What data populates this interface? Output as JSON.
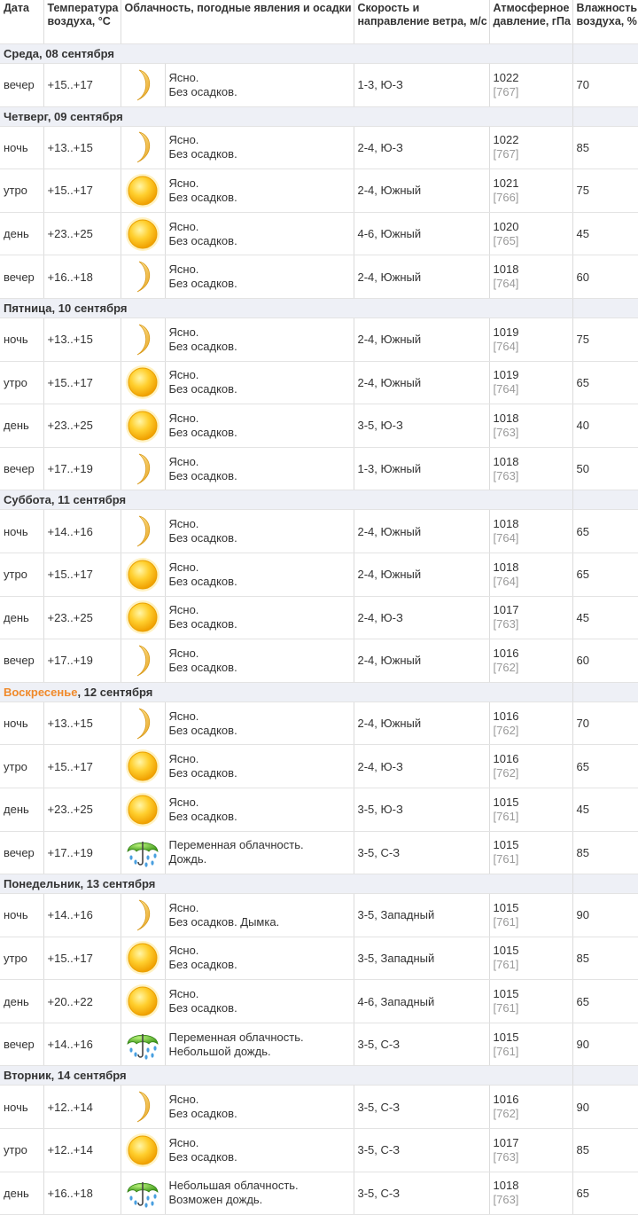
{
  "header": {
    "date": "Дата",
    "temp": "Температура воздуха, °C",
    "sky": "Облачность, погодные явления и осадки",
    "wind": "Скорость и направление ветра, м/с",
    "pressure": "Атмосферное давление, гПа",
    "humidity": "Влажность воздуха, %"
  },
  "days": [
    {
      "weekday": "Среда",
      "date": ", 08 сентября",
      "rows": [
        {
          "time": "вечер",
          "temp": "+15..+17",
          "icon": "moon",
          "sky": "Ясно.",
          "precip": "Без осадков.",
          "wind": "1-3, Ю-З",
          "hpa": 1022,
          "mmhg": "[767]",
          "humidity": 70
        }
      ]
    },
    {
      "weekday": "Четверг",
      "date": ", 09 сентября",
      "rows": [
        {
          "time": "ночь",
          "temp": "+13..+15",
          "icon": "moon",
          "sky": "Ясно.",
          "precip": "Без осадков.",
          "wind": "2-4, Ю-З",
          "hpa": 1022,
          "mmhg": "[767]",
          "humidity": 85
        },
        {
          "time": "утро",
          "temp": "+15..+17",
          "icon": "sun",
          "sky": "Ясно.",
          "precip": "Без осадков.",
          "wind": "2-4, Южный",
          "hpa": 1021,
          "mmhg": "[766]",
          "humidity": 75
        },
        {
          "time": "день",
          "temp": "+23..+25",
          "icon": "sun",
          "sky": "Ясно.",
          "precip": "Без осадков.",
          "wind": "4-6, Южный",
          "hpa": 1020,
          "mmhg": "[765]",
          "humidity": 45
        },
        {
          "time": "вечер",
          "temp": "+16..+18",
          "icon": "moon",
          "sky": "Ясно.",
          "precip": "Без осадков.",
          "wind": "2-4, Южный",
          "hpa": 1018,
          "mmhg": "[764]",
          "humidity": 60
        }
      ]
    },
    {
      "weekday": "Пятница",
      "date": ", 10 сентября",
      "rows": [
        {
          "time": "ночь",
          "temp": "+13..+15",
          "icon": "moon",
          "sky": "Ясно.",
          "precip": "Без осадков.",
          "wind": "2-4, Южный",
          "hpa": 1019,
          "mmhg": "[764]",
          "humidity": 75
        },
        {
          "time": "утро",
          "temp": "+15..+17",
          "icon": "sun",
          "sky": "Ясно.",
          "precip": "Без осадков.",
          "wind": "2-4, Южный",
          "hpa": 1019,
          "mmhg": "[764]",
          "humidity": 65
        },
        {
          "time": "день",
          "temp": "+23..+25",
          "icon": "sun",
          "sky": "Ясно.",
          "precip": "Без осадков.",
          "wind": "3-5, Ю-З",
          "hpa": 1018,
          "mmhg": "[763]",
          "humidity": 40
        },
        {
          "time": "вечер",
          "temp": "+17..+19",
          "icon": "moon",
          "sky": "Ясно.",
          "precip": "Без осадков.",
          "wind": "1-3, Южный",
          "hpa": 1018,
          "mmhg": "[763]",
          "humidity": 50
        }
      ]
    },
    {
      "weekday": "Суббота",
      "date": ", 11 сентября",
      "rows": [
        {
          "time": "ночь",
          "temp": "+14..+16",
          "icon": "moon",
          "sky": "Ясно.",
          "precip": "Без осадков.",
          "wind": "2-4, Южный",
          "hpa": 1018,
          "mmhg": "[764]",
          "humidity": 65
        },
        {
          "time": "утро",
          "temp": "+15..+17",
          "icon": "sun",
          "sky": "Ясно.",
          "precip": "Без осадков.",
          "wind": "2-4, Южный",
          "hpa": 1018,
          "mmhg": "[764]",
          "humidity": 65
        },
        {
          "time": "день",
          "temp": "+23..+25",
          "icon": "sun",
          "sky": "Ясно.",
          "precip": "Без осадков.",
          "wind": "2-4, Ю-З",
          "hpa": 1017,
          "mmhg": "[763]",
          "humidity": 45
        },
        {
          "time": "вечер",
          "temp": "+17..+19",
          "icon": "moon",
          "sky": "Ясно.",
          "precip": "Без осадков.",
          "wind": "2-4, Южный",
          "hpa": 1016,
          "mmhg": "[762]",
          "humidity": 60
        }
      ]
    },
    {
      "weekday": "Воскресенье",
      "weekday_color": "#f0892a",
      "date": ", 12 сентября",
      "rows": [
        {
          "time": "ночь",
          "temp": "+13..+15",
          "icon": "moon",
          "sky": "Ясно.",
          "precip": "Без осадков.",
          "wind": "2-4, Южный",
          "hpa": 1016,
          "mmhg": "[762]",
          "humidity": 70
        },
        {
          "time": "утро",
          "temp": "+15..+17",
          "icon": "sun",
          "sky": "Ясно.",
          "precip": "Без осадков.",
          "wind": "2-4, Ю-З",
          "hpa": 1016,
          "mmhg": "[762]",
          "humidity": 65
        },
        {
          "time": "день",
          "temp": "+23..+25",
          "icon": "sun",
          "sky": "Ясно.",
          "precip": "Без осадков.",
          "wind": "3-5, Ю-З",
          "hpa": 1015,
          "mmhg": "[761]",
          "humidity": 45
        },
        {
          "time": "вечер",
          "temp": "+17..+19",
          "icon": "rain",
          "sky": "Переменная облачность.",
          "precip": "Дождь.",
          "wind": "3-5, С-З",
          "hpa": 1015,
          "mmhg": "[761]",
          "humidity": 85
        }
      ]
    },
    {
      "weekday": "Понедельник",
      "date": ", 13 сентября",
      "rows": [
        {
          "time": "ночь",
          "temp": "+14..+16",
          "icon": "moon",
          "sky": "Ясно.",
          "precip": "Без осадков. Дымка.",
          "wind": "3-5, Западный",
          "hpa": 1015,
          "mmhg": "[761]",
          "humidity": 90
        },
        {
          "time": "утро",
          "temp": "+15..+17",
          "icon": "sun",
          "sky": "Ясно.",
          "precip": "Без осадков.",
          "wind": "3-5, Западный",
          "hpa": 1015,
          "mmhg": "[761]",
          "humidity": 85
        },
        {
          "time": "день",
          "temp": "+20..+22",
          "icon": "sun",
          "sky": "Ясно.",
          "precip": "Без осадков.",
          "wind": "4-6, Западный",
          "hpa": 1015,
          "mmhg": "[761]",
          "humidity": 65
        },
        {
          "time": "вечер",
          "temp": "+14..+16",
          "icon": "rain",
          "sky": "Переменная облачность.",
          "precip": "Небольшой дождь.",
          "wind": "3-5, С-З",
          "hpa": 1015,
          "mmhg": "[761]",
          "humidity": 90
        }
      ]
    },
    {
      "weekday": "Вторник",
      "date": ", 14 сентября",
      "rows": [
        {
          "time": "ночь",
          "temp": "+12..+14",
          "icon": "moon",
          "sky": "Ясно.",
          "precip": "Без осадков.",
          "wind": "3-5, С-З",
          "hpa": 1016,
          "mmhg": "[762]",
          "humidity": 90
        },
        {
          "time": "утро",
          "temp": "+12..+14",
          "icon": "sun",
          "sky": "Ясно.",
          "precip": "Без осадков.",
          "wind": "3-5, С-З",
          "hpa": 1017,
          "mmhg": "[763]",
          "humidity": 85
        },
        {
          "time": "день",
          "temp": "+16..+18",
          "icon": "rain",
          "sky": "Небольшая облачность.",
          "precip": "Возможен дождь.",
          "wind": "3-5, С-З",
          "hpa": 1018,
          "mmhg": "[763]",
          "humidity": 65
        }
      ]
    }
  ]
}
